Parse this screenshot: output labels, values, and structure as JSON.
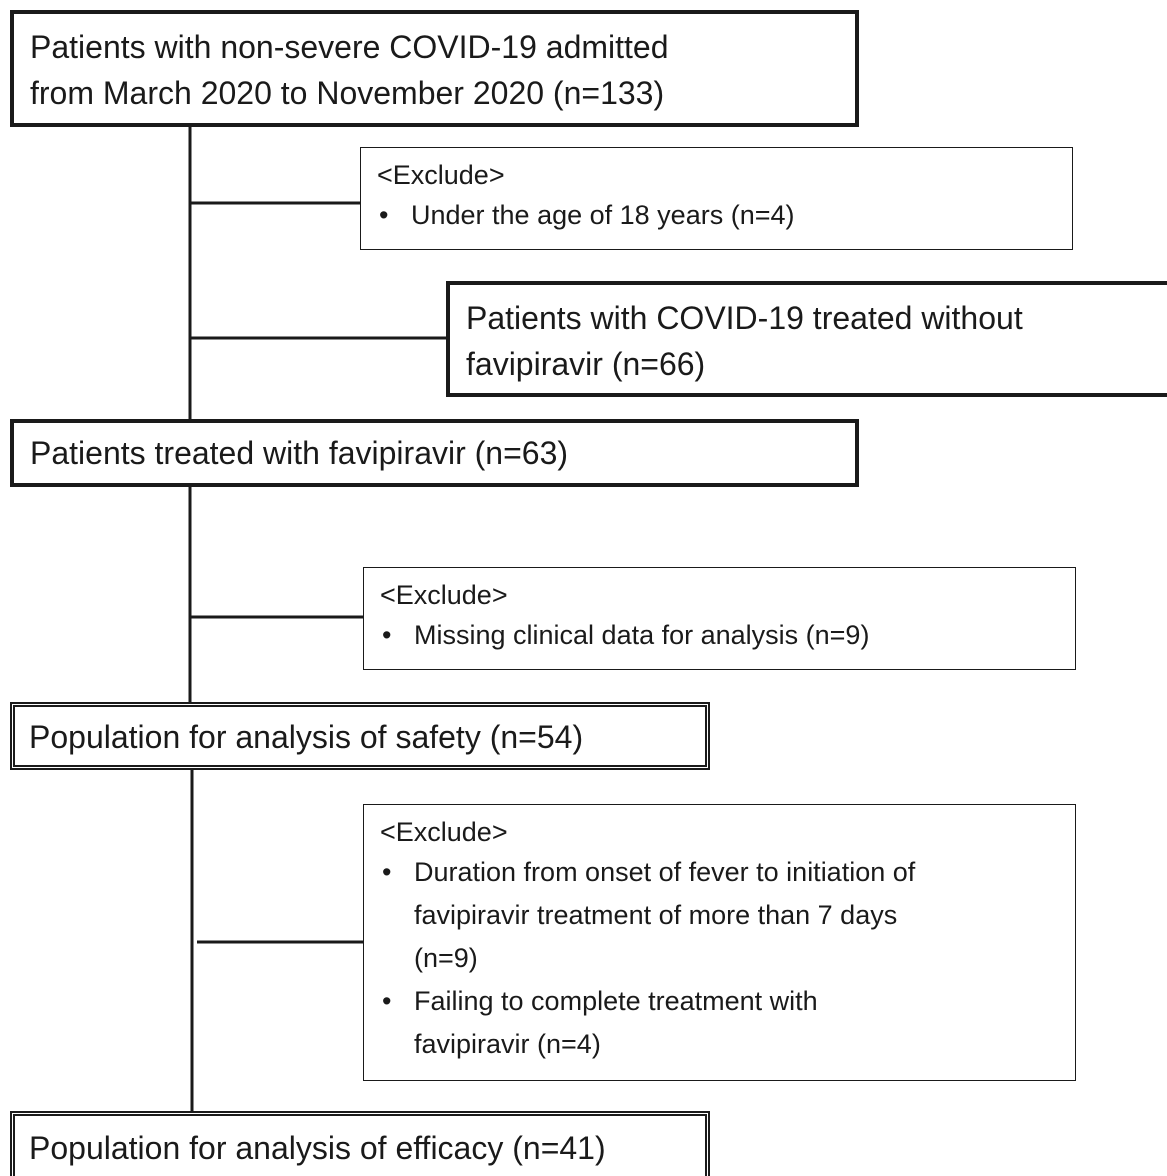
{
  "nodes": [
    {
      "lines": [
        "Patients with non-severe COVID-19 admitted",
        "from March 2020 to November 2020 (n=133)"
      ]
    },
    {
      "heading": "<Exclude>",
      "bullets": [
        [
          "Under the age of 18 years (n=4)"
        ]
      ]
    },
    {
      "lines": [
        "Patients with COVID-19 treated without",
        "favipiravir (n=66)"
      ]
    },
    {
      "lines": [
        "Patients treated with favipiravir (n=63)"
      ]
    },
    {
      "heading": "<Exclude>",
      "bullets": [
        [
          "Missing clinical data for analysis (n=9)"
        ]
      ]
    },
    {
      "lines": [
        "Population for analysis of safety (n=54)"
      ]
    },
    {
      "heading": "<Exclude>",
      "bullets": [
        [
          "Duration from onset of fever to initiation of",
          "favipiravir treatment of more than 7 days",
          "(n=9)"
        ],
        [
          "Failing to complete treatment with",
          "favipiravir (n=4)"
        ]
      ]
    },
    {
      "lines": [
        "Population for analysis of efficacy (n=41)"
      ]
    }
  ]
}
